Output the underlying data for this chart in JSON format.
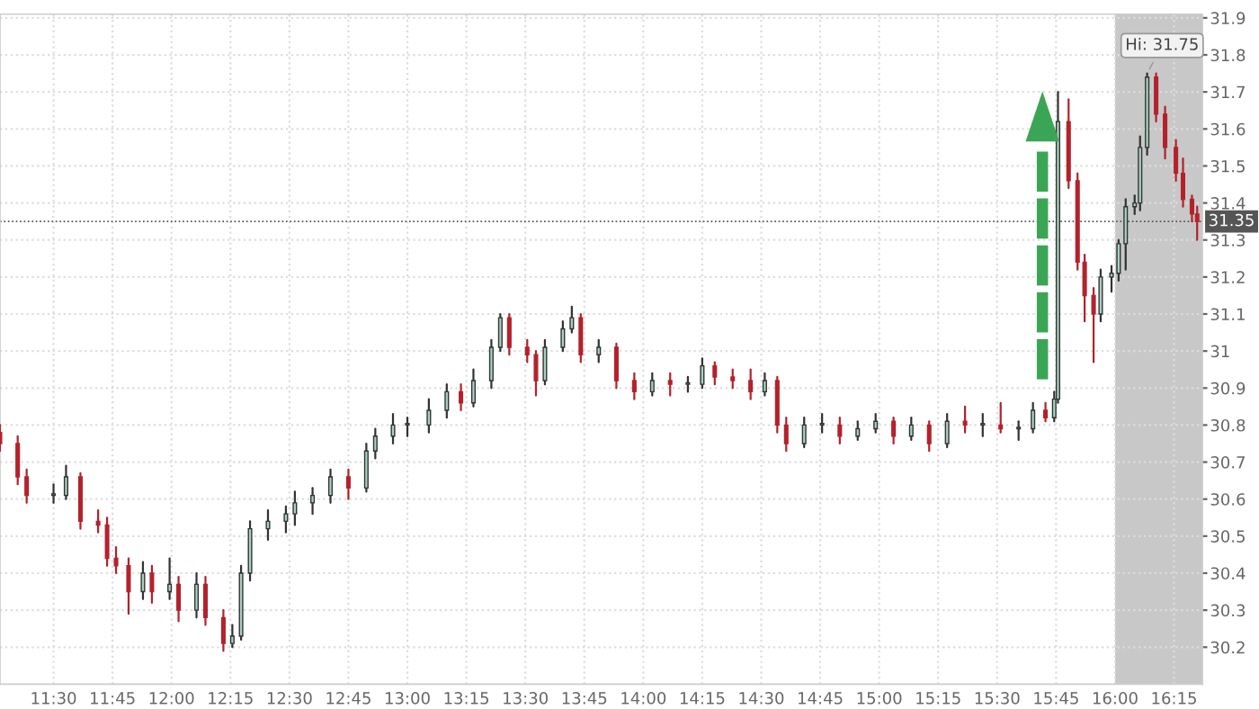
{
  "chart_data": {
    "type": "candlestick",
    "x": [
      11.273,
      11.348,
      11.386,
      11.5,
      11.553,
      11.614,
      11.689,
      11.727,
      11.765,
      11.818,
      11.879,
      11.917,
      11.992,
      12.03,
      12.106,
      12.144,
      12.22,
      12.258,
      12.295,
      12.333,
      12.409,
      12.485,
      12.523,
      12.598,
      12.674,
      12.75,
      12.826,
      12.864,
      12.939,
      13.0,
      13.091,
      13.167,
      13.227,
      13.28,
      13.356,
      13.394,
      13.432,
      13.508,
      13.545,
      13.583,
      13.659,
      13.697,
      13.735,
      13.811,
      13.886,
      13.962,
      14.038,
      14.114,
      14.189,
      14.25,
      14.303,
      14.379,
      14.455,
      14.515,
      14.568,
      14.606,
      14.682,
      14.758,
      14.833,
      14.909,
      14.985,
      15.061,
      15.136,
      15.212,
      15.288,
      15.364,
      15.439,
      15.515,
      15.591,
      15.652,
      15.705,
      15.742,
      15.758,
      15.803,
      15.841,
      15.871,
      15.909,
      15.939,
      15.985,
      16.015,
      16.045,
      16.083,
      16.106,
      16.136,
      16.174,
      16.212,
      16.258,
      16.288,
      16.326,
      16.348
    ],
    "ohlc": [
      [
        30.78,
        30.8,
        30.73,
        30.75
      ],
      [
        30.75,
        30.77,
        30.64,
        30.66
      ],
      [
        30.66,
        30.68,
        30.59,
        30.61
      ],
      [
        30.61,
        30.64,
        30.59,
        30.61
      ],
      [
        30.61,
        30.69,
        30.6,
        30.66
      ],
      [
        30.66,
        30.67,
        30.52,
        30.54
      ],
      [
        30.54,
        30.57,
        30.51,
        30.53
      ],
      [
        30.53,
        30.55,
        30.42,
        30.44
      ],
      [
        30.44,
        30.47,
        30.4,
        30.42
      ],
      [
        30.42,
        30.44,
        30.29,
        30.35
      ],
      [
        30.35,
        30.43,
        30.33,
        30.4
      ],
      [
        30.4,
        30.42,
        30.32,
        30.35
      ],
      [
        30.35,
        30.44,
        30.33,
        30.37
      ],
      [
        30.37,
        30.39,
        30.27,
        30.3
      ],
      [
        30.3,
        30.4,
        30.28,
        30.37
      ],
      [
        30.37,
        30.39,
        30.26,
        30.28
      ],
      [
        30.28,
        30.3,
        30.19,
        30.21
      ],
      [
        30.21,
        30.26,
        30.2,
        30.23
      ],
      [
        30.23,
        30.42,
        30.22,
        30.4
      ],
      [
        30.4,
        30.54,
        30.38,
        30.52
      ],
      [
        30.52,
        30.57,
        30.49,
        30.54
      ],
      [
        30.54,
        30.58,
        30.51,
        30.56
      ],
      [
        30.56,
        30.62,
        30.53,
        30.59
      ],
      [
        30.59,
        30.63,
        30.56,
        30.61
      ],
      [
        30.61,
        30.68,
        30.59,
        30.66
      ],
      [
        30.66,
        30.68,
        30.6,
        30.63
      ],
      [
        30.63,
        30.75,
        30.62,
        30.73
      ],
      [
        30.73,
        30.79,
        30.71,
        30.77
      ],
      [
        30.77,
        30.83,
        30.75,
        30.8
      ],
      [
        30.8,
        30.82,
        30.77,
        30.8
      ],
      [
        30.8,
        30.87,
        30.78,
        30.84
      ],
      [
        30.84,
        30.91,
        30.82,
        30.89
      ],
      [
        30.89,
        30.91,
        30.84,
        30.86
      ],
      [
        30.86,
        30.95,
        30.85,
        30.92
      ],
      [
        30.92,
        31.03,
        30.9,
        31.01
      ],
      [
        31.01,
        31.1,
        31.0,
        31.09
      ],
      [
        31.09,
        31.1,
        30.99,
        31.01
      ],
      [
        31.01,
        31.03,
        30.97,
        30.99
      ],
      [
        30.99,
        31.0,
        30.88,
        30.92
      ],
      [
        30.92,
        31.03,
        30.91,
        31.01
      ],
      [
        31.01,
        31.08,
        31.0,
        31.06
      ],
      [
        31.06,
        31.12,
        31.05,
        31.09
      ],
      [
        31.09,
        31.1,
        30.97,
        30.99
      ],
      [
        30.99,
        31.03,
        30.97,
        31.01
      ],
      [
        31.01,
        31.02,
        30.9,
        30.92
      ],
      [
        30.92,
        30.94,
        30.87,
        30.89
      ],
      [
        30.89,
        30.94,
        30.88,
        30.92
      ],
      [
        30.92,
        30.94,
        30.88,
        30.91
      ],
      [
        30.91,
        30.93,
        30.89,
        30.91
      ],
      [
        30.91,
        30.98,
        30.9,
        30.96
      ],
      [
        30.96,
        30.97,
        30.91,
        30.93
      ],
      [
        30.93,
        30.95,
        30.9,
        30.92
      ],
      [
        30.92,
        30.95,
        30.87,
        30.89
      ],
      [
        30.89,
        30.94,
        30.88,
        30.92
      ],
      [
        30.92,
        30.93,
        30.78,
        30.8
      ],
      [
        30.8,
        30.82,
        30.73,
        30.75
      ],
      [
        30.75,
        30.82,
        30.74,
        30.8
      ],
      [
        30.8,
        30.83,
        30.78,
        30.8
      ],
      [
        30.8,
        30.82,
        30.75,
        30.77
      ],
      [
        30.77,
        30.81,
        30.76,
        30.79
      ],
      [
        30.79,
        30.83,
        30.78,
        30.81
      ],
      [
        30.81,
        30.82,
        30.75,
        30.77
      ],
      [
        30.77,
        30.82,
        30.76,
        30.8
      ],
      [
        30.8,
        30.81,
        30.73,
        30.75
      ],
      [
        30.75,
        30.83,
        30.74,
        30.81
      ],
      [
        30.81,
        30.85,
        30.78,
        30.8
      ],
      [
        30.8,
        30.83,
        30.77,
        30.8
      ],
      [
        30.8,
        30.86,
        30.78,
        30.79
      ],
      [
        30.79,
        30.81,
        30.76,
        30.79
      ],
      [
        30.79,
        30.86,
        30.78,
        30.84
      ],
      [
        30.84,
        30.86,
        30.81,
        30.82
      ],
      [
        30.82,
        30.89,
        30.81,
        30.87
      ],
      [
        30.87,
        31.7,
        30.86,
        31.62
      ],
      [
        31.62,
        31.68,
        31.44,
        31.46
      ],
      [
        31.46,
        31.48,
        31.22,
        31.24
      ],
      [
        31.24,
        31.26,
        31.08,
        31.15
      ],
      [
        31.15,
        31.17,
        30.97,
        31.1
      ],
      [
        31.1,
        31.22,
        31.08,
        31.2
      ],
      [
        31.2,
        31.23,
        31.16,
        31.21
      ],
      [
        31.21,
        31.3,
        31.19,
        31.29
      ],
      [
        31.29,
        31.41,
        31.22,
        31.39
      ],
      [
        31.39,
        31.42,
        31.37,
        31.4
      ],
      [
        31.4,
        31.58,
        31.38,
        31.55
      ],
      [
        31.55,
        31.75,
        31.53,
        31.74
      ],
      [
        31.74,
        31.75,
        31.62,
        31.64
      ],
      [
        31.64,
        31.66,
        31.52,
        31.55
      ],
      [
        31.55,
        31.57,
        31.46,
        31.48
      ],
      [
        31.48,
        31.52,
        31.39,
        31.41
      ],
      [
        31.41,
        31.42,
        31.35,
        31.37
      ],
      [
        31.37,
        31.39,
        31.3,
        31.35
      ]
    ],
    "xlim": [
      11.273,
      16.37
    ],
    "xticks": [
      {
        "value": 11.5,
        "label": "11:30"
      },
      {
        "value": 11.75,
        "label": "11:45"
      },
      {
        "value": 12.0,
        "label": "12:00"
      },
      {
        "value": 12.25,
        "label": "12:15"
      },
      {
        "value": 12.5,
        "label": "12:30"
      },
      {
        "value": 12.75,
        "label": "12:45"
      },
      {
        "value": 13.0,
        "label": "13:00"
      },
      {
        "value": 13.25,
        "label": "13:15"
      },
      {
        "value": 13.5,
        "label": "13:30"
      },
      {
        "value": 13.75,
        "label": "13:45"
      },
      {
        "value": 14.0,
        "label": "14:00"
      },
      {
        "value": 14.25,
        "label": "14:15"
      },
      {
        "value": 14.5,
        "label": "14:30"
      },
      {
        "value": 14.75,
        "label": "14:45"
      },
      {
        "value": 15.0,
        "label": "15:00"
      },
      {
        "value": 15.25,
        "label": "15:15"
      },
      {
        "value": 15.5,
        "label": "15:30"
      },
      {
        "value": 15.75,
        "label": "15:45"
      },
      {
        "value": 16.0,
        "label": "16:00"
      },
      {
        "value": 16.25,
        "label": "16:15"
      }
    ],
    "ylim": [
      30.1,
      31.91
    ],
    "yticks": [
      30.2,
      30.3,
      30.4,
      30.5,
      30.6,
      30.7,
      30.8,
      30.9,
      31,
      31.1,
      31.2,
      31.3,
      31.4,
      31.5,
      31.6,
      31.7,
      31.8,
      31.9
    ],
    "grid": true,
    "bands": [
      {
        "axis": "x",
        "from": 16.0,
        "to": 16.37,
        "color": "#c8c8c8"
      }
    ],
    "ref_lines": [
      {
        "axis": "y",
        "value": 31.35,
        "label": "31.35",
        "color": "#555555",
        "line_style": "dotted"
      }
    ],
    "annotations": [
      {
        "text": "Hi: 31.75",
        "x": 16.136,
        "y": 31.75
      }
    ]
  }
}
